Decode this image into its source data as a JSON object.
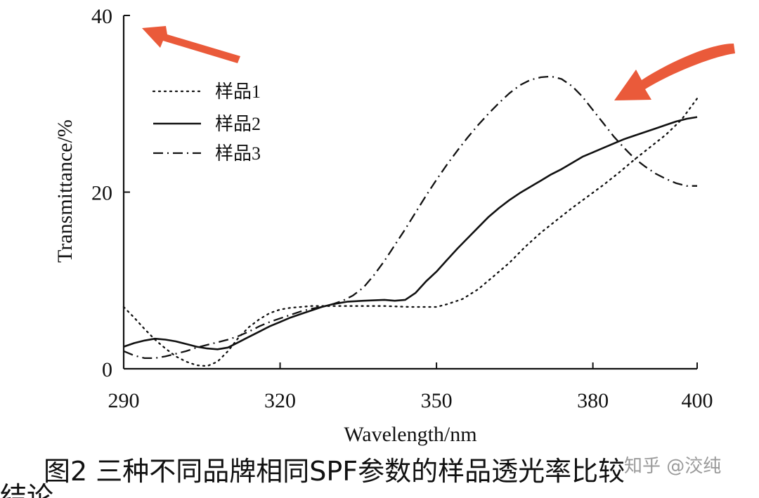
{
  "chart_data": {
    "type": "line",
    "title": "",
    "xlabel": "Wavelength/nm",
    "ylabel": "Transmittance/%",
    "xlim": [
      290,
      400
    ],
    "ylim": [
      0,
      40
    ],
    "x_ticks": [
      290,
      320,
      350,
      380,
      400
    ],
    "y_ticks": [
      0,
      20,
      40
    ],
    "grid": false,
    "legend_position": "top-left",
    "series": [
      {
        "name": "样品1",
        "style": "dotted",
        "color": "#111111",
        "points": [
          [
            290,
            7.0
          ],
          [
            292,
            5.8
          ],
          [
            294,
            4.5
          ],
          [
            296,
            3.3
          ],
          [
            298,
            2.3
          ],
          [
            300,
            1.4
          ],
          [
            302,
            0.8
          ],
          [
            304,
            0.4
          ],
          [
            306,
            0.3
          ],
          [
            308,
            0.8
          ],
          [
            310,
            2.0
          ],
          [
            312,
            3.5
          ],
          [
            314,
            4.7
          ],
          [
            316,
            5.6
          ],
          [
            318,
            6.3
          ],
          [
            320,
            6.7
          ],
          [
            322,
            6.9
          ],
          [
            324,
            7.0
          ],
          [
            326,
            7.1
          ],
          [
            328,
            7.1
          ],
          [
            330,
            7.1
          ],
          [
            335,
            7.1
          ],
          [
            340,
            7.1
          ],
          [
            345,
            7.0
          ],
          [
            350,
            7.0
          ],
          [
            352,
            7.3
          ],
          [
            355,
            7.9
          ],
          [
            358,
            9.0
          ],
          [
            361,
            10.5
          ],
          [
            364,
            12.0
          ],
          [
            367,
            13.8
          ],
          [
            370,
            15.4
          ],
          [
            373,
            16.8
          ],
          [
            376,
            18.2
          ],
          [
            379,
            19.5
          ],
          [
            382,
            20.8
          ],
          [
            385,
            22.2
          ],
          [
            388,
            23.7
          ],
          [
            391,
            25.1
          ],
          [
            394,
            26.5
          ],
          [
            397,
            28.2
          ],
          [
            400,
            30.6
          ]
        ]
      },
      {
        "name": "样品2",
        "style": "solid",
        "color": "#111111",
        "points": [
          [
            290,
            2.5
          ],
          [
            292,
            2.9
          ],
          [
            294,
            3.2
          ],
          [
            296,
            3.4
          ],
          [
            298,
            3.3
          ],
          [
            300,
            3.1
          ],
          [
            302,
            2.8
          ],
          [
            304,
            2.5
          ],
          [
            306,
            2.3
          ],
          [
            308,
            2.2
          ],
          [
            310,
            2.4
          ],
          [
            312,
            3.0
          ],
          [
            314,
            3.6
          ],
          [
            316,
            4.2
          ],
          [
            318,
            4.8
          ],
          [
            320,
            5.3
          ],
          [
            322,
            5.8
          ],
          [
            324,
            6.2
          ],
          [
            326,
            6.6
          ],
          [
            328,
            7.0
          ],
          [
            330,
            7.3
          ],
          [
            333,
            7.6
          ],
          [
            336,
            7.7
          ],
          [
            340,
            7.8
          ],
          [
            342,
            7.7
          ],
          [
            344,
            7.8
          ],
          [
            346,
            8.6
          ],
          [
            348,
            9.9
          ],
          [
            350,
            11.0
          ],
          [
            352,
            12.3
          ],
          [
            354,
            13.6
          ],
          [
            356,
            14.8
          ],
          [
            358,
            16.0
          ],
          [
            360,
            17.2
          ],
          [
            362,
            18.2
          ],
          [
            364,
            19.1
          ],
          [
            366,
            19.9
          ],
          [
            368,
            20.6
          ],
          [
            370,
            21.3
          ],
          [
            372,
            22.0
          ],
          [
            374,
            22.6
          ],
          [
            376,
            23.3
          ],
          [
            378,
            24.0
          ],
          [
            380,
            24.5
          ],
          [
            382,
            25.0
          ],
          [
            384,
            25.5
          ],
          [
            386,
            26.0
          ],
          [
            388,
            26.4
          ],
          [
            390,
            26.8
          ],
          [
            392,
            27.2
          ],
          [
            394,
            27.6
          ],
          [
            396,
            28.0
          ],
          [
            398,
            28.3
          ],
          [
            400,
            28.5
          ]
        ]
      },
      {
        "name": "样品3",
        "style": "dash-dot",
        "color": "#111111",
        "points": [
          [
            290,
            2.0
          ],
          [
            292,
            1.5
          ],
          [
            294,
            1.2
          ],
          [
            296,
            1.2
          ],
          [
            298,
            1.4
          ],
          [
            300,
            1.7
          ],
          [
            302,
            2.0
          ],
          [
            304,
            2.4
          ],
          [
            306,
            2.7
          ],
          [
            308,
            3.0
          ],
          [
            310,
            3.3
          ],
          [
            312,
            3.7
          ],
          [
            314,
            4.2
          ],
          [
            316,
            4.8
          ],
          [
            318,
            5.3
          ],
          [
            320,
            5.7
          ],
          [
            322,
            6.1
          ],
          [
            324,
            6.5
          ],
          [
            326,
            6.8
          ],
          [
            328,
            7.0
          ],
          [
            330,
            7.3
          ],
          [
            332,
            7.7
          ],
          [
            334,
            8.3
          ],
          [
            336,
            9.2
          ],
          [
            338,
            10.6
          ],
          [
            340,
            12.2
          ],
          [
            342,
            14.0
          ],
          [
            344,
            15.8
          ],
          [
            346,
            17.7
          ],
          [
            348,
            19.6
          ],
          [
            350,
            21.4
          ],
          [
            352,
            23.1
          ],
          [
            354,
            24.7
          ],
          [
            356,
            26.2
          ],
          [
            358,
            27.6
          ],
          [
            360,
            28.9
          ],
          [
            362,
            30.1
          ],
          [
            364,
            31.2
          ],
          [
            366,
            32.1
          ],
          [
            368,
            32.7
          ],
          [
            370,
            33.0
          ],
          [
            372,
            33.1
          ],
          [
            374,
            32.8
          ],
          [
            376,
            32.0
          ],
          [
            378,
            30.8
          ],
          [
            380,
            29.3
          ],
          [
            382,
            27.8
          ],
          [
            384,
            26.3
          ],
          [
            386,
            25.0
          ],
          [
            388,
            23.8
          ],
          [
            390,
            22.9
          ],
          [
            392,
            22.1
          ],
          [
            394,
            21.5
          ],
          [
            396,
            21.0
          ],
          [
            398,
            20.7
          ],
          [
            400,
            20.7
          ]
        ]
      }
    ]
  },
  "annotations": {
    "arrow_color": "#ea5a3a",
    "arrows": [
      "top-left-arrow",
      "right-curve-arrow"
    ]
  },
  "caption": "图2 三种不同品牌相同SPF参数的样品透光率比较",
  "caption_tail": "结论",
  "watermark": "知乎 @洨纯"
}
